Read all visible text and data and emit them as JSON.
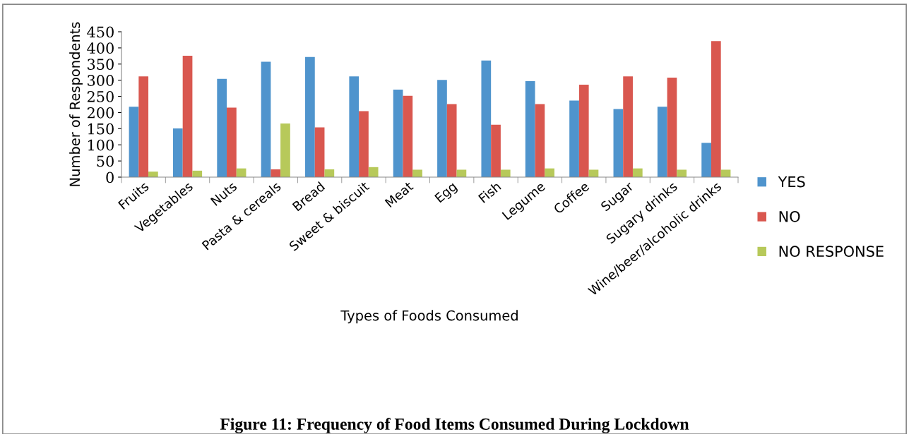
{
  "chart_data": {
    "type": "bar",
    "title": "Figure 11: Frequency of Food Items Consumed During Lockdown",
    "xlabel": "Types of Foods Consumed",
    "ylabel": "Number of Respondents",
    "categories": [
      "Fruits",
      "Vegetables",
      "Nuts",
      "Pasta & cereals",
      "Bread",
      "Sweet & biscuit",
      "Meat",
      "Egg",
      "Fish",
      "Legume",
      "Coffee",
      "Sugar",
      "Sugary drinks",
      "Wine/beer/alcoholic drinks"
    ],
    "series": [
      {
        "name": "YES",
        "color": "#4f94cd",
        "values": [
          218,
          151,
          304,
          357,
          372,
          312,
          271,
          301,
          361,
          297,
          237,
          211,
          218,
          106
        ]
      },
      {
        "name": "NO",
        "color": "#d9574f",
        "values": [
          312,
          376,
          215,
          24,
          154,
          204,
          252,
          226,
          162,
          226,
          286,
          312,
          308,
          421
        ]
      },
      {
        "name": "NO RESPONSE",
        "color": "#b7c95a",
        "values": [
          17,
          20,
          27,
          166,
          24,
          31,
          23,
          23,
          23,
          27,
          23,
          27,
          23,
          23
        ]
      }
    ],
    "ylim": [
      0,
      450
    ],
    "yticks": [
      0,
      50,
      100,
      150,
      200,
      250,
      300,
      350,
      400,
      450
    ],
    "grid": false,
    "legend": "right"
  }
}
